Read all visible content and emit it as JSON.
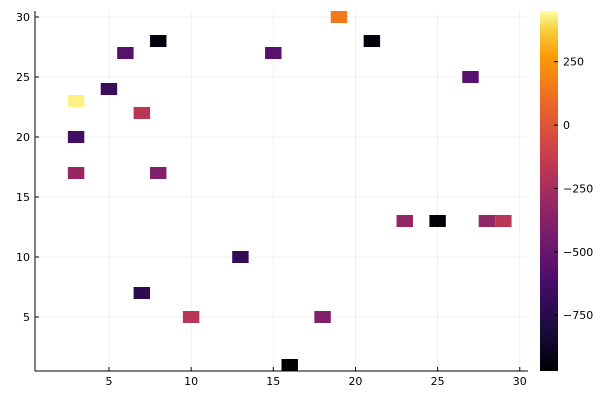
{
  "chart_data": {
    "type": "heatmap",
    "title": "",
    "xlabel": "",
    "ylabel": "",
    "xlim": [
      0.5,
      30.5
    ],
    "ylim": [
      0.5,
      30.5
    ],
    "xticks": [
      5,
      10,
      15,
      20,
      25,
      30
    ],
    "yticks": [
      5,
      10,
      15,
      20,
      25,
      30
    ],
    "grid": true,
    "colormap": "inferno",
    "colorbar": {
      "min": -970,
      "max": 450,
      "ticks": [
        -750,
        -500,
        -250,
        0,
        250
      ],
      "tick_labels": [
        "−750",
        "−500",
        "−250",
        "0",
        "250"
      ]
    },
    "cells": [
      {
        "x": 19,
        "y": 30,
        "value": 150
      },
      {
        "x": 8,
        "y": 28,
        "value": -950
      },
      {
        "x": 21,
        "y": 28,
        "value": -950
      },
      {
        "x": 6,
        "y": 27,
        "value": -560
      },
      {
        "x": 15,
        "y": 27,
        "value": -560
      },
      {
        "x": 27,
        "y": 25,
        "value": -560
      },
      {
        "x": 5,
        "y": 24,
        "value": -680
      },
      {
        "x": 3,
        "y": 23,
        "value": 430
      },
      {
        "x": 7,
        "y": 22,
        "value": -180
      },
      {
        "x": 3,
        "y": 20,
        "value": -640
      },
      {
        "x": 3,
        "y": 17,
        "value": -320
      },
      {
        "x": 8,
        "y": 17,
        "value": -400
      },
      {
        "x": 23,
        "y": 13,
        "value": -330
      },
      {
        "x": 25,
        "y": 13,
        "value": -960
      },
      {
        "x": 28,
        "y": 13,
        "value": -330
      },
      {
        "x": 29,
        "y": 13,
        "value": -180
      },
      {
        "x": 13,
        "y": 10,
        "value": -700
      },
      {
        "x": 7,
        "y": 7,
        "value": -730
      },
      {
        "x": 10,
        "y": 5,
        "value": -180
      },
      {
        "x": 18,
        "y": 5,
        "value": -400
      },
      {
        "x": 16,
        "y": 1,
        "value": -970
      }
    ]
  }
}
